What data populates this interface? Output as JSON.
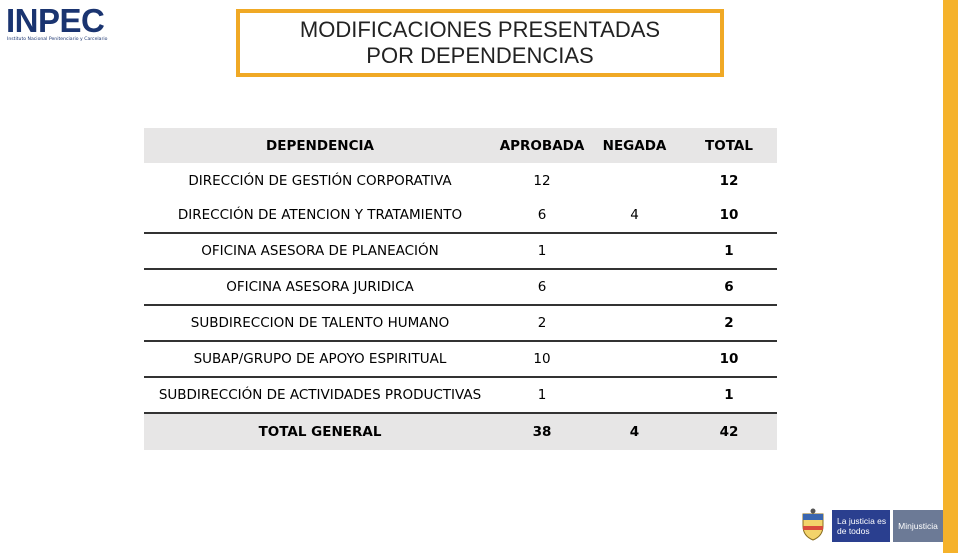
{
  "logo": {
    "word": "INPEC",
    "subtitle": "Instituto Nacional Penitenciario y Carcelario"
  },
  "title": {
    "line1": "MODIFICACIONES PRESENTADAS",
    "line2": "POR DEPENDENCIAS"
  },
  "table": {
    "headers": [
      "DEPENDENCIA",
      "APROBADA",
      "NEGADA",
      "TOTAL"
    ],
    "rows": [
      {
        "dependencia": "DIRECCIÓN DE GESTIÓN CORPORATIVA",
        "aprobada": "12",
        "negada": "",
        "total": "12"
      },
      {
        "dependencia": "DIRECCIÓN DE ATENCION Y TRATAMIENTO",
        "aprobada": "6",
        "negada": "4",
        "total": "10"
      },
      {
        "dependencia": "OFICINA ASESORA DE PLANEACIÓN",
        "aprobada": "1",
        "negada": "",
        "total": "1"
      },
      {
        "dependencia": "OFICINA ASESORA JURIDICA",
        "aprobada": "6",
        "negada": "",
        "total": "6"
      },
      {
        "dependencia": "SUBDIRECCION DE TALENTO HUMANO",
        "aprobada": "2",
        "negada": "",
        "total": "2"
      },
      {
        "dependencia": "SUBAP/GRUPO DE APOYO ESPIRITUAL",
        "aprobada": "10",
        "negada": "",
        "total": "10"
      },
      {
        "dependencia": "SUBDIRECCIÓN DE ACTIVIDADES PRODUCTIVAS",
        "aprobada": "1",
        "negada": "",
        "total": "1"
      }
    ],
    "total": {
      "label": "TOTAL GENERAL",
      "aprobada": "38",
      "negada": "4",
      "total": "42"
    }
  },
  "footer_logo": {
    "left_text": "La justicia es de todos",
    "right_text": "Minjusticia"
  },
  "colors": {
    "accent": "#f0a925",
    "header_fill": "#e7e6e6",
    "brand_blue": "#1a3470"
  }
}
